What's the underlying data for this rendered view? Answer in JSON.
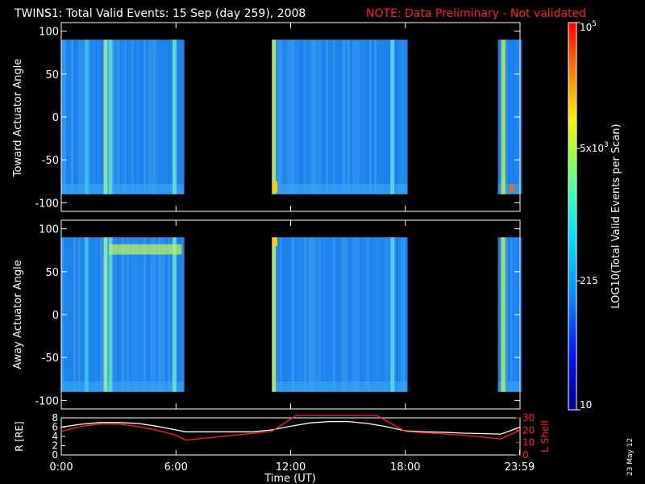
{
  "title": "TWINS1: Total Valid Events: 15 Sep (day 259), 2008",
  "note": "NOTE: Data Preliminary - Not validated",
  "footer_date": "23 May 12",
  "colors": {
    "background": "#000000",
    "text": "#ffffff",
    "note": "#ff2020",
    "lshell": "#ff2020",
    "radius": "#ffffff"
  },
  "chart_data": [
    {
      "type": "heatmap",
      "ylabel": "Toward Actuator Angle",
      "ylim": [
        -110,
        110
      ],
      "yticks": [
        "100",
        "50",
        "0",
        "-50",
        "-100"
      ],
      "data_blocks_hours": [
        [
          0.0,
          6.4
        ],
        [
          11.05,
          18.1
        ],
        [
          22.85,
          24.0
        ]
      ],
      "bright_columns_hours": [
        1.3,
        2.3,
        2.55,
        5.9,
        11.1,
        17.3,
        23.1
      ],
      "notes": "Mostly blue-cyan background; yellow/red hot spot near -80 deg at ~11:05 and ~23:30"
    },
    {
      "type": "heatmap",
      "ylabel": "Away Actuator Angle",
      "ylim": [
        -110,
        110
      ],
      "yticks": [
        "100",
        "50",
        "0",
        "-50",
        "-100"
      ],
      "data_blocks_hours": [
        [
          0.0,
          6.4
        ],
        [
          11.05,
          18.1
        ],
        [
          22.85,
          24.0
        ]
      ],
      "bright_columns_hours": [
        1.3,
        2.3,
        2.55,
        5.9,
        11.1,
        17.3,
        23.1
      ],
      "notes": "Yellow-green band near +75 deg from ~2:30 to 6:20"
    },
    {
      "type": "line",
      "xlabel": "Time (UT)",
      "xticks": [
        "0:00",
        "6:00",
        "12:00",
        "18:00",
        "23:59"
      ],
      "xtick_hours": [
        0,
        6,
        12,
        18,
        23.98
      ],
      "left_axis": {
        "label": "R [RE]",
        "ylim": [
          0,
          8
        ],
        "ticks": [
          "8",
          "6",
          "4",
          "2",
          "0"
        ]
      },
      "right_axis": {
        "label": "L Shell",
        "ylim": [
          0,
          30
        ],
        "ticks": [
          "30",
          "20",
          "10",
          "0"
        ]
      },
      "series": [
        {
          "name": "R",
          "axis": "left",
          "x": [
            0,
            1,
            2,
            3,
            4,
            5,
            6,
            6.5,
            8,
            10,
            11,
            12,
            13,
            14,
            15,
            16,
            17,
            18,
            19,
            20,
            21,
            22,
            23,
            24
          ],
          "y": [
            6.0,
            6.6,
            7.0,
            7.0,
            6.8,
            6.2,
            5.4,
            5.0,
            5.0,
            5.0,
            5.4,
            6.2,
            6.9,
            7.2,
            7.2,
            6.8,
            6.1,
            5.2,
            5.0,
            4.9,
            4.7,
            4.6,
            4.5,
            6.0
          ]
        },
        {
          "name": "L Shell",
          "axis": "right",
          "x": [
            0,
            1,
            2,
            3,
            4,
            5,
            6,
            6.5,
            11,
            12.3,
            16.5,
            18,
            21,
            23,
            24
          ],
          "y": [
            19,
            23,
            25,
            25,
            23,
            20,
            16,
            12,
            19,
            32,
            32,
            19,
            16,
            13,
            20
          ]
        }
      ]
    }
  ],
  "colorbar": {
    "label": "LOG10(Total Valid Events per Scan)",
    "ticks": [
      "10",
      "215",
      "5x10 3",
      "10 5"
    ],
    "tick_values": [
      10,
      215,
      5000,
      100000
    ],
    "scale": "log",
    "range": [
      10,
      100000
    ]
  }
}
